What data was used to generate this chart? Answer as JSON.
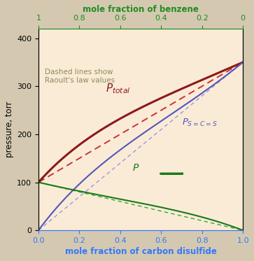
{
  "outer_bg_color": "#d4c9b0",
  "plot_bg_color": "#faebd7",
  "p_benzene_pure": 100,
  "p_cs2_pure": 350,
  "bottom_xlabel": "mole fraction of carbon disulfide",
  "top_xlabel": "mole fraction of benzene",
  "ylabel": "pressure, torr",
  "color_bottom_axis": "#3377ff",
  "color_top_axis": "#228B22",
  "ylim": [
    0,
    420
  ],
  "xlim": [
    0,
    1
  ],
  "annotation_text": "Dashed lines show\nRaoult's law values",
  "annotation_color": "#8B8B5A",
  "label_ptotal": "$P_{total}$",
  "label_pcs2": "$P_{S=C=S}$",
  "label_pbenzene": "$P$",
  "color_total": "#8B1A1A",
  "color_cs2": "#5555bb",
  "color_benzene": "#1a7a1a",
  "dashed_color_total": "#cc3333",
  "dashed_color_cs2": "#9999dd",
  "dashed_color_benzene": "#33aa33",
  "margules_A": 0.5,
  "figsize": [
    3.63,
    3.73
  ],
  "dpi": 100
}
